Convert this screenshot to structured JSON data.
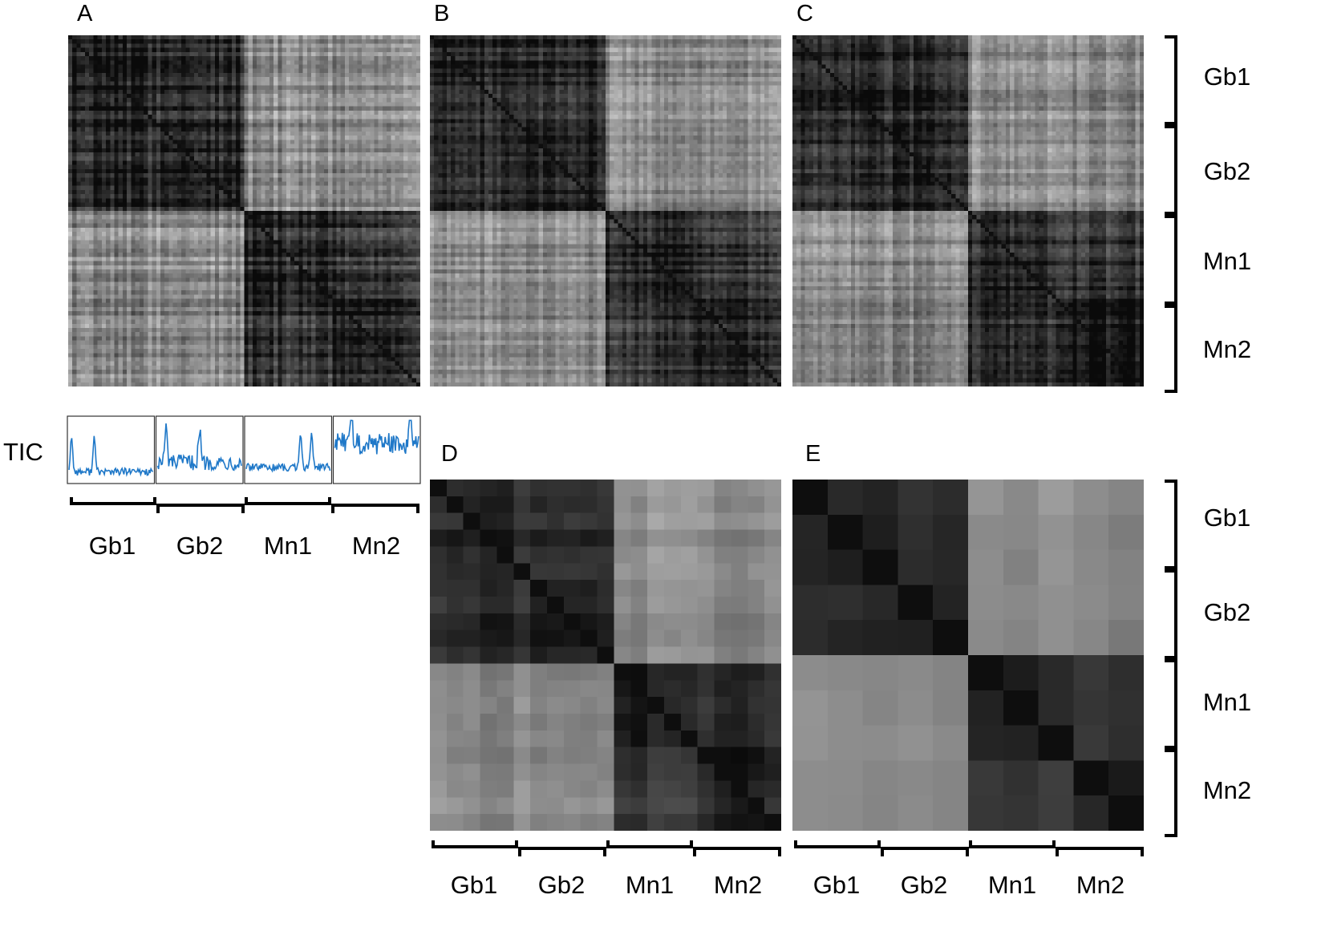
{
  "panels": [
    {
      "letter": "A",
      "resolution": 84,
      "texture": 0.55,
      "label_align": "right"
    },
    {
      "letter": "B",
      "resolution": 84,
      "texture": 0.45
    },
    {
      "letter": "C",
      "resolution": 84,
      "texture": 0.45
    },
    {
      "letter": "D",
      "resolution": 21,
      "texture": 0.25
    },
    {
      "letter": "E",
      "resolution": 10,
      "texture": 0.15
    }
  ],
  "groups": [
    "Gb1",
    "Gb2",
    "Mn1",
    "Mn2"
  ],
  "tic_label": "TIC",
  "chart_data": {
    "type": "heatmap",
    "description_of_blocks": "block-averaged similarity between groups (0 = high similarity/dark, 1 = low/light)",
    "row_groups": [
      "Gb1",
      "Gb2",
      "Mn1",
      "Mn2"
    ],
    "col_groups": [
      "Gb1",
      "Gb2",
      "Mn1",
      "Mn2"
    ],
    "block_values": [
      [
        0.12,
        0.15,
        0.62,
        0.6
      ],
      [
        0.15,
        0.1,
        0.6,
        0.58
      ],
      [
        0.62,
        0.6,
        0.12,
        0.2
      ],
      [
        0.6,
        0.58,
        0.2,
        0.1
      ]
    ],
    "tic_series": [
      {
        "group": "Gb1",
        "level": 0.15,
        "noise": 0.12,
        "peaks": [
          0.03,
          0.3
        ]
      },
      {
        "group": "Gb2",
        "level": 0.3,
        "noise": 0.25,
        "peaks": [
          0.1,
          0.5
        ]
      },
      {
        "group": "Mn1",
        "level": 0.22,
        "noise": 0.12,
        "peaks": [
          0.65,
          0.78
        ]
      },
      {
        "group": "Mn2",
        "level": 0.6,
        "noise": 0.35,
        "peaks": [
          0.2,
          0.9
        ]
      }
    ],
    "line_color": "#1f78c8"
  }
}
